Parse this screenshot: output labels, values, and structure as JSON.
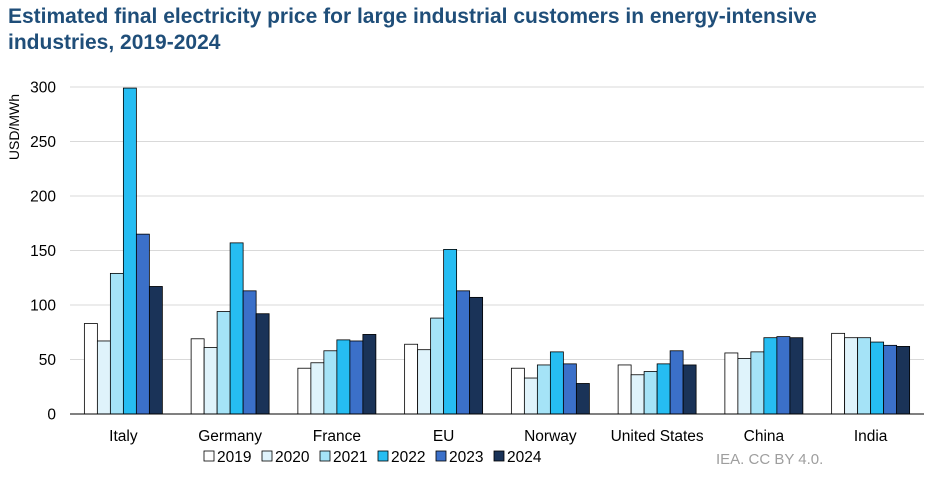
{
  "chart_data": {
    "type": "bar",
    "title": "Estimated final electricity price for large industrial customers in energy-intensive industries, 2019-2024",
    "xlabel": "",
    "ylabel": "USD/MWh",
    "ylim": [
      0,
      300
    ],
    "yticks": [
      0,
      50,
      100,
      150,
      200,
      250,
      300
    ],
    "grid": true,
    "legend_position": "bottom",
    "categories": [
      "Italy",
      "Germany",
      "France",
      "EU",
      "Norway",
      "United States",
      "China",
      "India"
    ],
    "series": [
      {
        "name": "2019",
        "color": "#ffffff",
        "values": [
          83,
          69,
          42,
          64,
          42,
          45,
          56,
          74
        ]
      },
      {
        "name": "2020",
        "color": "#dff3fb",
        "values": [
          67,
          61,
          47,
          59,
          33,
          36,
          51,
          70
        ]
      },
      {
        "name": "2021",
        "color": "#a5e3f7",
        "values": [
          129,
          94,
          58,
          88,
          45,
          39,
          57,
          70
        ]
      },
      {
        "name": "2022",
        "color": "#26bdf2",
        "values": [
          299,
          157,
          68,
          151,
          57,
          46,
          70,
          66
        ]
      },
      {
        "name": "2023",
        "color": "#3b70c9",
        "values": [
          165,
          113,
          67,
          113,
          46,
          58,
          71,
          63
        ]
      },
      {
        "name": "2024",
        "color": "#1a3358",
        "values": [
          117,
          92,
          73,
          107,
          28,
          45,
          70,
          62
        ]
      }
    ],
    "source_note": "IEA. CC BY 4.0."
  }
}
